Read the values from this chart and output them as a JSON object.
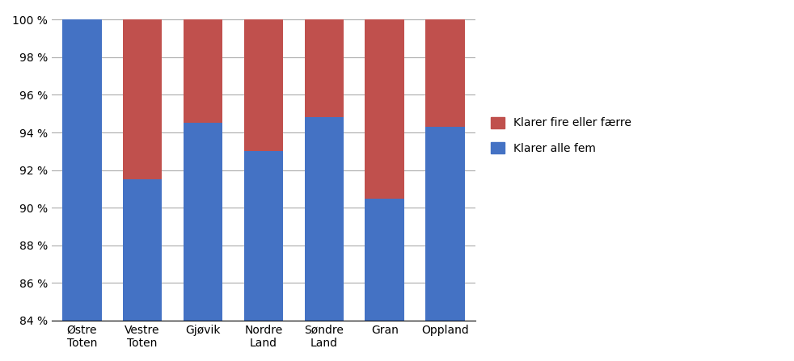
{
  "categories": [
    "Østre\nToten",
    "Vestre\nToten",
    "Gjøvik",
    "Nordre\nLand",
    "Søndre\nLand",
    "Gran",
    "Oppland"
  ],
  "klarer_alle_fem": [
    100.0,
    91.5,
    94.5,
    93.0,
    94.8,
    90.5,
    94.3
  ],
  "klarer_fire_eller_faerre": [
    0.0,
    8.5,
    5.5,
    7.0,
    5.2,
    9.5,
    5.7
  ],
  "color_blue": "#4472C4",
  "color_red": "#C0504D",
  "legend_label_red": "Klarer fire eller færre",
  "legend_label_blue": "Klarer alle fem",
  "ylim_min": 84,
  "ylim_max": 100.4,
  "yticks": [
    84,
    86,
    88,
    90,
    92,
    94,
    96,
    98,
    100
  ],
  "ytick_labels": [
    "84 %",
    "86 %",
    "88 %",
    "90 %",
    "92 %",
    "94 %",
    "96 %",
    "98 %",
    "100 %"
  ],
  "bar_width": 0.65,
  "background_color": "#FFFFFF",
  "grid_color": "#AAAAAA"
}
